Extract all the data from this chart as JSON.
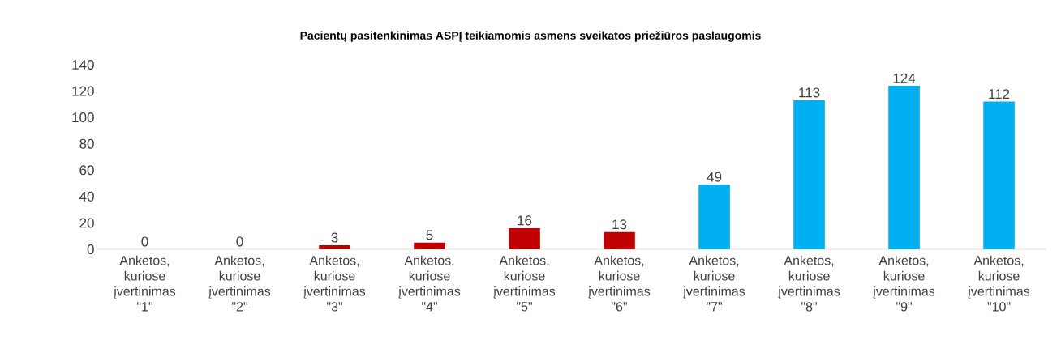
{
  "chart_data": {
    "type": "bar",
    "title": "Pacientų pasitenkinimas ASPĮ teikiamomis asmens sveikatos priežiūros paslaugomis",
    "categories": [
      "Anketos, kuriose įvertinimas \"1\"",
      "Anketos, kuriose įvertinimas \"2\"",
      "Anketos, kuriose įvertinimas \"3\"",
      "Anketos, kuriose įvertinimas \"4\"",
      "Anketos, kuriose įvertinimas \"5\"",
      "Anketos, kuriose įvertinimas \"6\"",
      "Anketos, kuriose įvertinimas \"7\"",
      "Anketos, kuriose įvertinimas \"8\"",
      "Anketos, kuriose įvertinimas \"9\"",
      "Anketos, kuriose įvertinimas \"10\""
    ],
    "values": [
      0,
      0,
      3,
      5,
      16,
      13,
      49,
      113,
      124,
      112
    ],
    "colors": [
      "#c00000",
      "#c00000",
      "#c00000",
      "#c00000",
      "#c00000",
      "#c00000",
      "#00b0f0",
      "#00b0f0",
      "#00b0f0",
      "#00b0f0"
    ],
    "ylim": [
      0,
      140
    ],
    "yticks": [
      0,
      20,
      40,
      60,
      80,
      100,
      120,
      140
    ],
    "grid": false,
    "data_labels": true
  }
}
